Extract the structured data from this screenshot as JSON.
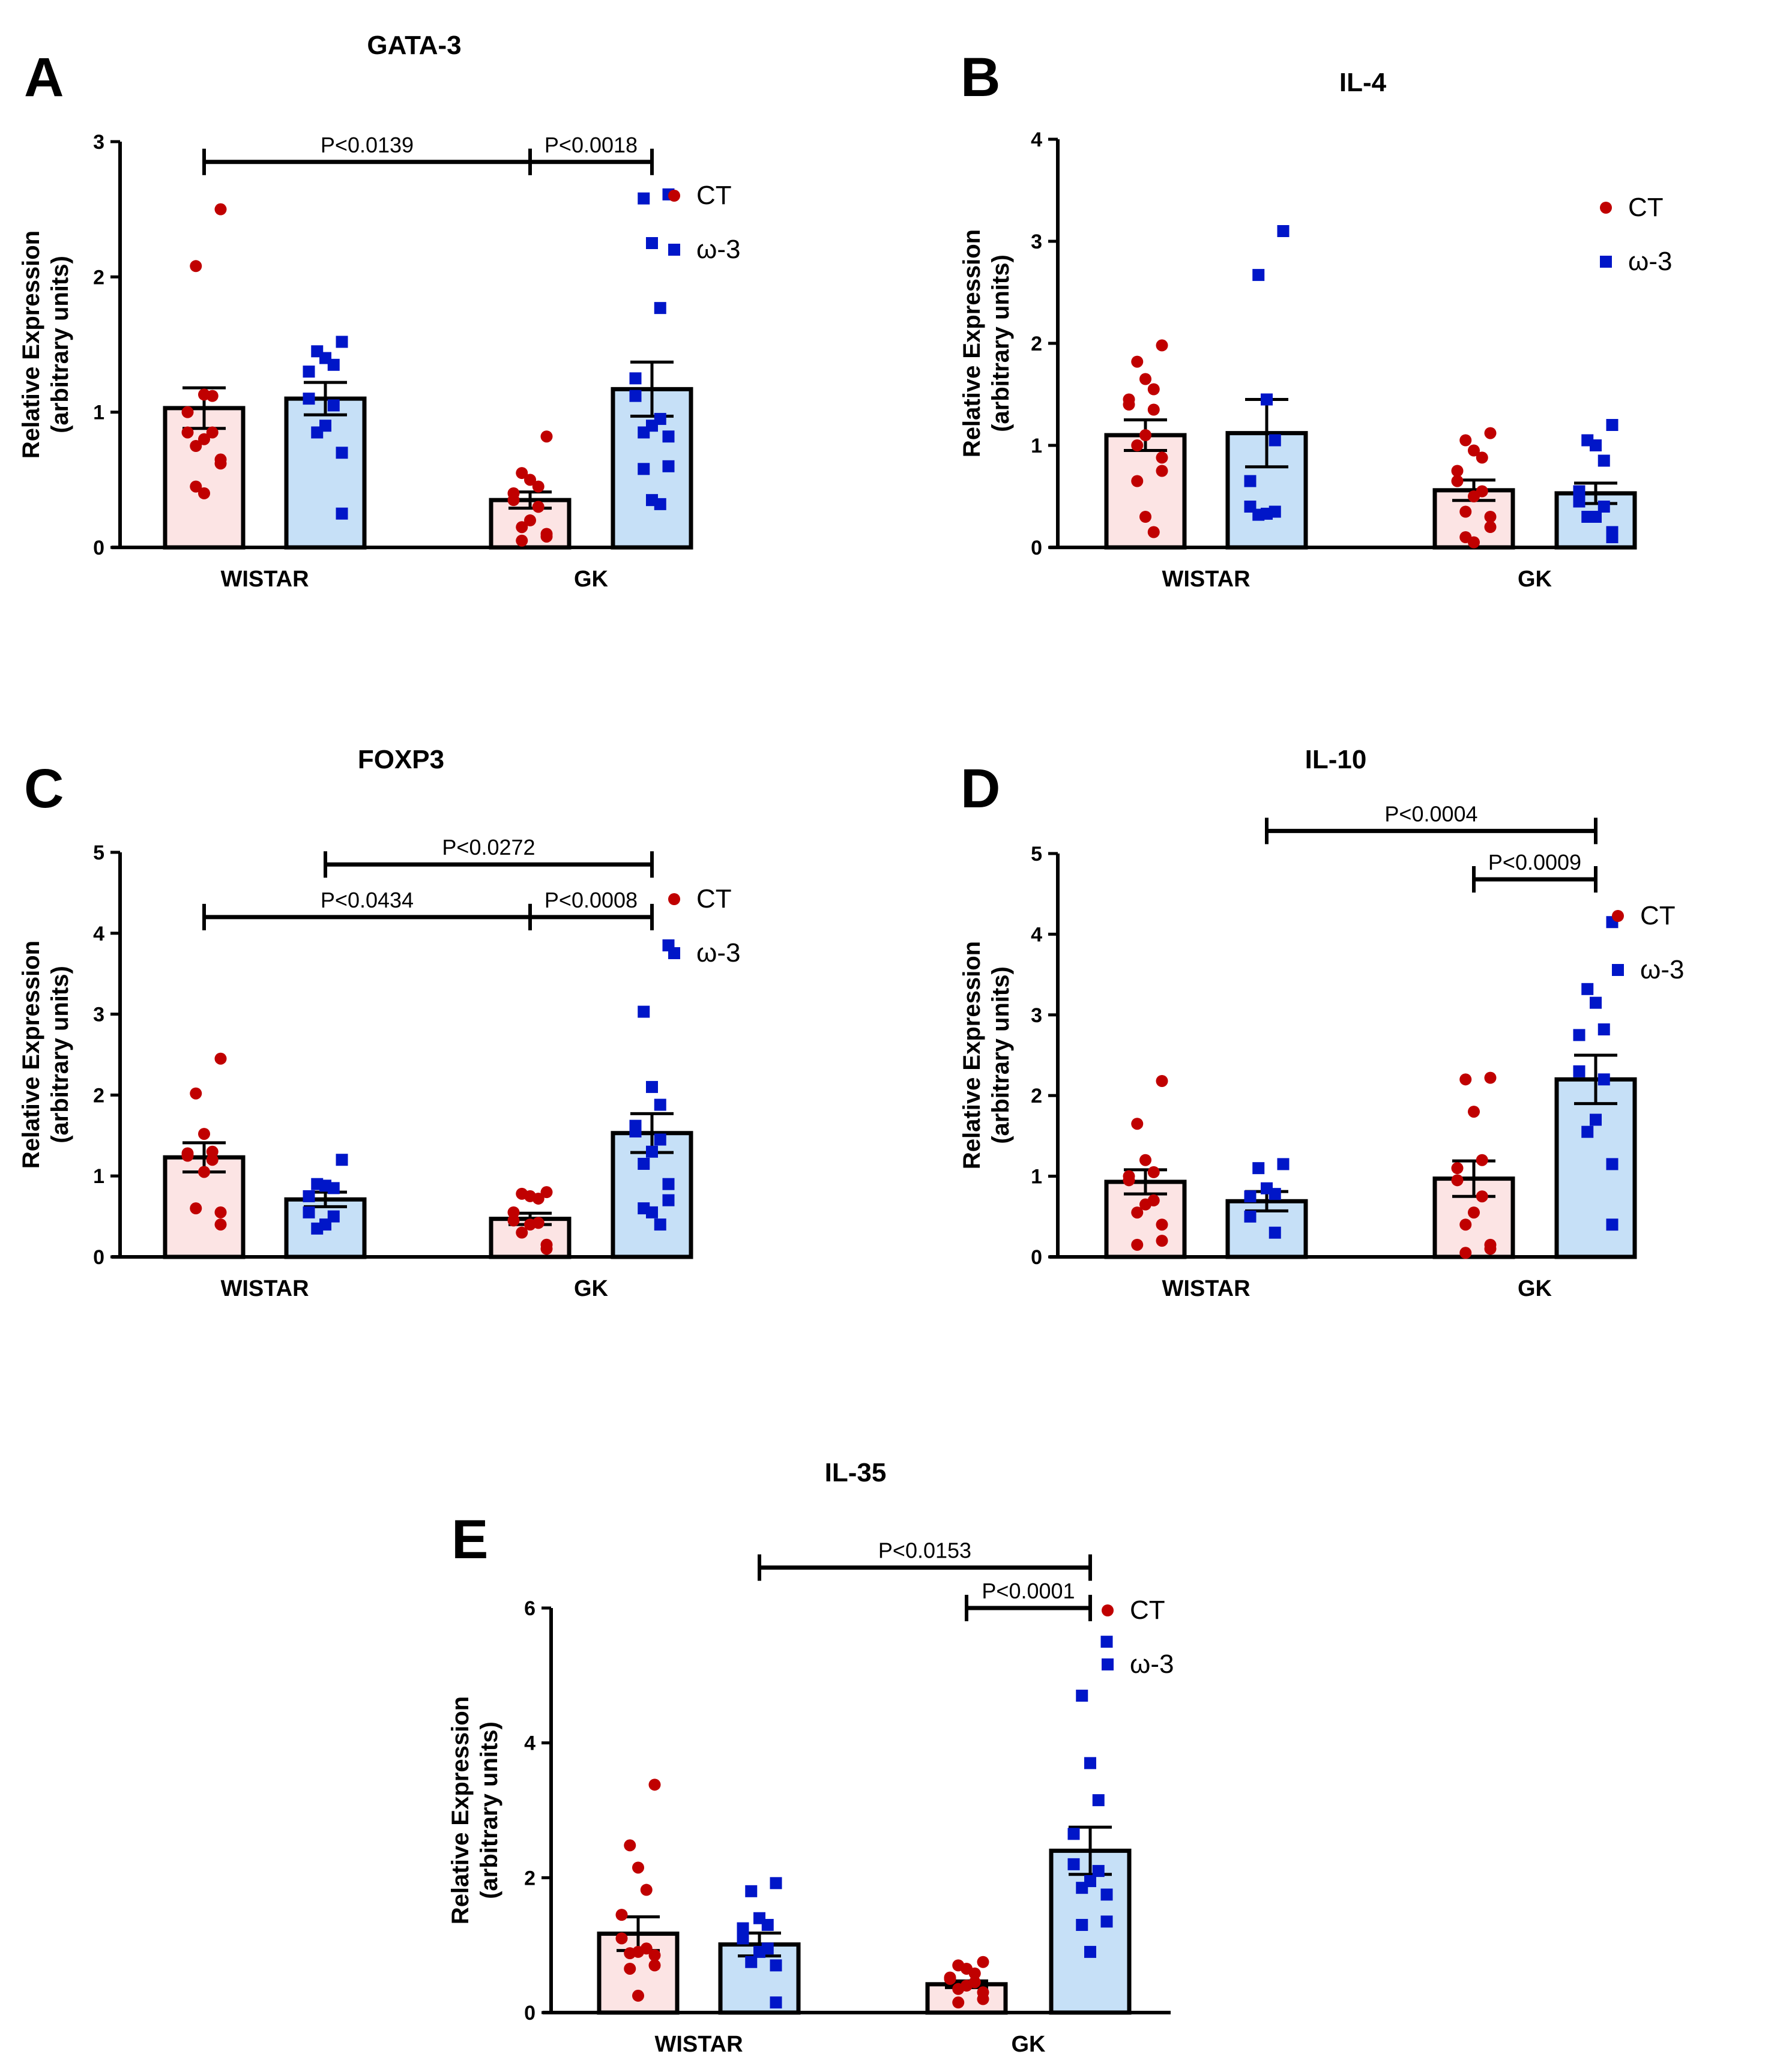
{
  "colors": {
    "ct_point": "#C00000",
    "ct_bar": "#FCE4E4",
    "w3_point": "#0016C8",
    "w3_bar": "#C6E0F7",
    "ink": "#000000"
  },
  "legend": {
    "ct": "CT",
    "w3": "ω-3",
    "w3_panel_c": " ω-3"
  },
  "chart_data": [
    {
      "panel": "A",
      "type": "bar",
      "title": "GATA-3",
      "ylabel": [
        "Relative Expression",
        "(arbitrary units)"
      ],
      "ylim": [
        0,
        3
      ],
      "yticks": [
        "0",
        "1",
        "2",
        "3"
      ],
      "categories": [
        "WISTAR",
        "GK"
      ],
      "series": [
        {
          "name": "CT",
          "means": [
            1.03,
            0.35
          ],
          "sem": [
            0.15,
            0.06
          ],
          "points": [
            [
              2.5,
              2.08,
              1.13,
              1.12,
              1.0,
              0.85,
              0.85,
              0.8,
              0.75,
              0.65,
              0.62,
              0.45,
              0.4
            ],
            [
              0.82,
              0.55,
              0.5,
              0.45,
              0.4,
              0.35,
              0.3,
              0.2,
              0.15,
              0.1,
              0.08,
              0.05
            ]
          ]
        },
        {
          "name": "ω-3",
          "means": [
            1.1,
            1.17
          ],
          "sem": [
            0.12,
            0.2
          ],
          "points": [
            [
              1.52,
              1.45,
              1.4,
              1.35,
              1.3,
              1.1,
              1.05,
              0.9,
              0.85,
              0.7,
              0.25
            ],
            [
              2.61,
              2.58,
              2.25,
              1.77,
              1.25,
              1.12,
              0.95,
              0.9,
              0.85,
              0.82,
              0.6,
              0.58,
              0.35,
              0.32
            ]
          ]
        }
      ],
      "significance": [
        {
          "label": "P<0.0139",
          "y": 2.85,
          "from": [
            0,
            0
          ],
          "to": [
            1,
            0
          ]
        },
        {
          "label": "P<0.0018",
          "y": 2.85,
          "from": [
            1,
            0
          ],
          "to": [
            1,
            1
          ]
        }
      ]
    },
    {
      "panel": "B",
      "type": "bar",
      "title": "IL-4",
      "ylabel": [
        "Relative Expression",
        "(arbitrary units)"
      ],
      "ylim": [
        0,
        4
      ],
      "yticks": [
        "0",
        "1",
        "2",
        "3",
        "4"
      ],
      "categories": [
        "WISTAR",
        "GK"
      ],
      "series": [
        {
          "name": "CT",
          "means": [
            1.1,
            0.56
          ],
          "sem": [
            0.15,
            0.1
          ],
          "points": [
            [
              1.98,
              1.82,
              1.65,
              1.55,
              1.45,
              1.4,
              1.35,
              1.1,
              1.0,
              0.88,
              0.75,
              0.65,
              0.3,
              0.15
            ],
            [
              1.12,
              1.05,
              0.95,
              0.88,
              0.75,
              0.65,
              0.55,
              0.5,
              0.35,
              0.3,
              0.2,
              0.1,
              0.05
            ]
          ]
        },
        {
          "name": "ω-3",
          "means": [
            1.12,
            0.53
          ],
          "sem": [
            0.33,
            0.1
          ],
          "points": [
            [
              3.1,
              2.67,
              1.45,
              1.05,
              0.65,
              0.4,
              0.35,
              0.33,
              0.32
            ],
            [
              1.2,
              1.05,
              1.0,
              0.85,
              0.55,
              0.45,
              0.4,
              0.3,
              0.3,
              0.15,
              0.1
            ]
          ]
        }
      ],
      "significance": []
    },
    {
      "panel": "C",
      "type": "bar",
      "title": "FOXP3",
      "ylabel": [
        "Relative Expression",
        "(arbitrary units)"
      ],
      "ylim": [
        0,
        5
      ],
      "yticks": [
        "0",
        "1",
        "2",
        "3",
        "4",
        "5"
      ],
      "categories": [
        "WISTAR",
        "GK"
      ],
      "series": [
        {
          "name": "CT",
          "means": [
            1.23,
            0.47
          ],
          "sem": [
            0.18,
            0.07
          ],
          "points": [
            [
              2.45,
              2.02,
              1.52,
              1.3,
              1.28,
              1.25,
              1.2,
              1.05,
              0.6,
              0.55,
              0.4
            ],
            [
              0.8,
              0.78,
              0.75,
              0.72,
              0.55,
              0.45,
              0.42,
              0.4,
              0.3,
              0.15,
              0.1
            ]
          ]
        },
        {
          "name": "ω-3",
          "means": [
            0.71,
            0.0
          ],
          "sem": [
            0.09,
            0.0
          ],
          "points": [
            [
              1.2,
              0.9,
              0.88,
              0.85,
              0.75,
              0.55,
              0.5,
              0.4,
              0.35
            ],
            []
          ]
        },
        {
          "name": "ω-3 GK",
          "means": [
            0,
            1.53
          ],
          "sem": [
            0,
            0.24
          ],
          "points": [
            [],
            [
              3.85,
              3.03,
              2.1,
              1.88,
              1.62,
              1.55,
              1.45,
              1.3,
              1.15,
              0.9,
              0.7,
              0.6,
              0.55,
              0.4
            ]
          ]
        }
      ],
      "significance": [
        {
          "label": "P<0.0272",
          "y": 4.85,
          "from": [
            0,
            1
          ],
          "to": [
            1,
            1
          ]
        },
        {
          "label": "P<0.0434",
          "y": 4.2,
          "from": [
            0,
            0
          ],
          "to": [
            1,
            0
          ]
        },
        {
          "label": "P<0.0008",
          "y": 4.2,
          "from": [
            1,
            0
          ],
          "to": [
            1,
            1
          ]
        }
      ]
    },
    {
      "panel": "D",
      "type": "bar",
      "title": "IL-10",
      "ylabel": [
        "Relative Expression",
        "(arbitrary units)"
      ],
      "ylim": [
        0,
        5
      ],
      "yticks": [
        "0",
        "1",
        "2",
        "3",
        "4",
        "5"
      ],
      "categories": [
        "WISTAR",
        "GK"
      ],
      "series": [
        {
          "name": "CT",
          "means": [
            0.93,
            0.97
          ],
          "sem": [
            0.15,
            0.22
          ],
          "points": [
            [
              2.18,
              1.65,
              1.2,
              1.05,
              1.0,
              0.95,
              0.7,
              0.65,
              0.55,
              0.4,
              0.2,
              0.15
            ],
            [
              2.22,
              2.2,
              1.8,
              1.2,
              1.1,
              0.95,
              0.75,
              0.55,
              0.4,
              0.15,
              0.1,
              0.05
            ]
          ]
        },
        {
          "name": "ω-3",
          "means": [
            0.69,
            2.2
          ],
          "sem": [
            0.12,
            0.3
          ],
          "points": [
            [
              1.15,
              1.1,
              0.85,
              0.78,
              0.75,
              0.5,
              0.3
            ],
            [
              4.15,
              3.32,
              3.15,
              2.82,
              2.75,
              2.3,
              2.2,
              1.7,
              1.55,
              1.15,
              0.4
            ]
          ]
        }
      ],
      "significance": [
        {
          "label": "P<0.0004",
          "y": 5.28,
          "from": [
            0,
            1
          ],
          "to": [
            1,
            1
          ]
        },
        {
          "label": "P<0.0009",
          "y": 4.68,
          "from": [
            1,
            0
          ],
          "to": [
            1,
            1
          ]
        }
      ]
    },
    {
      "panel": "E",
      "type": "bar",
      "title": "IL-35",
      "ylabel": [
        "Relative Expression",
        "(arbitrary units)"
      ],
      "ylim": [
        0,
        6
      ],
      "yticks": [
        "0",
        "2",
        "4",
        "6"
      ],
      "categories": [
        "WISTAR",
        "GK"
      ],
      "series": [
        {
          "name": "CT",
          "means": [
            1.17,
            0.42
          ],
          "sem": [
            0.25,
            0.05
          ],
          "points": [
            [
              3.38,
              2.48,
              2.15,
              1.82,
              1.45,
              1.1,
              0.95,
              0.9,
              0.88,
              0.85,
              0.7,
              0.65,
              0.25
            ],
            [
              0.75,
              0.7,
              0.65,
              0.58,
              0.52,
              0.5,
              0.45,
              0.4,
              0.35,
              0.3,
              0.2,
              0.15
            ]
          ]
        },
        {
          "name": "ω-3",
          "means": [
            1.01,
            2.4
          ],
          "sem": [
            0.17,
            0.35
          ],
          "points": [
            [
              1.92,
              1.8,
              1.4,
              1.3,
              1.25,
              1.1,
              0.95,
              0.9,
              0.75,
              0.7,
              0.15
            ],
            [
              5.5,
              4.7,
              3.7,
              3.15,
              2.65,
              2.2,
              2.1,
              1.95,
              1.85,
              1.75,
              1.35,
              1.3,
              0.9
            ]
          ]
        }
      ],
      "significance": [
        {
          "label": "P<0.0153",
          "y": 6.6,
          "from": [
            0,
            1
          ],
          "to": [
            1,
            1
          ]
        },
        {
          "label": "P<0.0001",
          "y": 6.0,
          "from": [
            1,
            0
          ],
          "to": [
            1,
            1
          ]
        }
      ]
    }
  ]
}
